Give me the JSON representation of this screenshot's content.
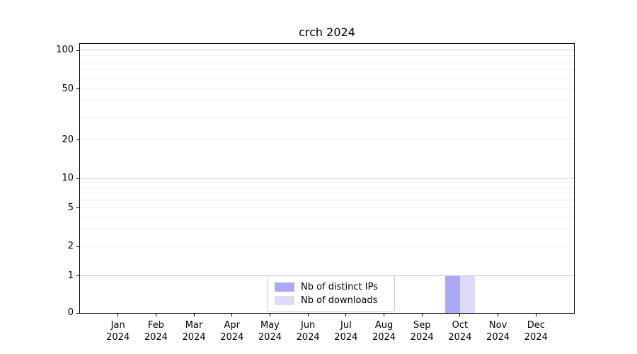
{
  "chart_data": {
    "type": "bar",
    "title": "crch 2024",
    "xlabel": "",
    "ylabel": "",
    "x_tick_labels": [
      "Jan 2024",
      "Feb 2024",
      "Mar 2024",
      "Apr 2024",
      "May 2024",
      "Jun 2024",
      "Jul 2024",
      "Aug 2024",
      "Sep 2024",
      "Oct 2024",
      "Nov 2024",
      "Dec 2024"
    ],
    "series": [
      {
        "name": "Nb of distinct IPs",
        "color": "#a9a9f5",
        "values": [
          0,
          0,
          0,
          0,
          0,
          0,
          0,
          0,
          0,
          1,
          0,
          0
        ]
      },
      {
        "name": "Nb of downloads",
        "color": "#dcdcf9",
        "values": [
          0,
          0,
          0,
          0,
          0,
          0,
          0,
          0,
          0,
          1,
          0,
          0
        ]
      }
    ],
    "y_ticks": [
      0,
      1,
      2,
      5,
      10,
      20,
      50,
      100
    ],
    "y_minor_gridlines": [
      2,
      3,
      4,
      5,
      6,
      7,
      8,
      9,
      20,
      30,
      40,
      50,
      60,
      70,
      80,
      90
    ],
    "y_major_gridlines": [
      1,
      10,
      100
    ],
    "y_scale": "symlog",
    "ylim": [
      0,
      112
    ],
    "grid": "horizontal",
    "legend_position": "lower-center",
    "colors": {
      "axis": "#000000",
      "major_grid": "#c9c9c9",
      "minor_grid": "#efefef",
      "legend_border": "#cccccc",
      "background": "#ffffff"
    }
  }
}
